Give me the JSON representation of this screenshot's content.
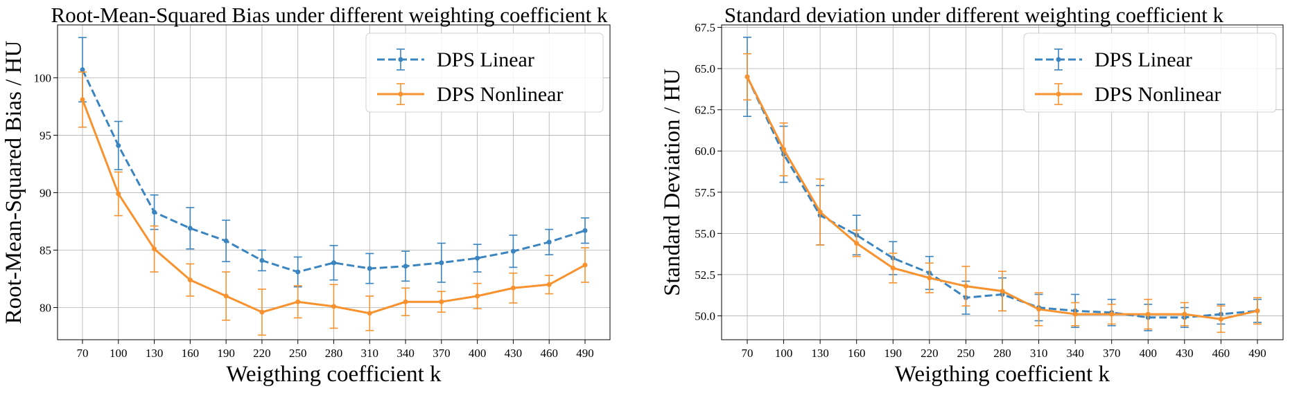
{
  "chart_data": [
    {
      "type": "line",
      "title": "Root-Mean-Squared Bias under different weighting coefficient k",
      "xlabel": "Weigthing coefficient k",
      "ylabel": "Root-Mean-Squared Bias / HU",
      "x": [
        70,
        100,
        130,
        160,
        190,
        220,
        250,
        280,
        310,
        340,
        370,
        400,
        430,
        460,
        490
      ],
      "xticks": [
        "70",
        "100",
        "130",
        "160",
        "190",
        "220",
        "250",
        "280",
        "310",
        "340",
        "370",
        "400",
        "430",
        "460",
        "490"
      ],
      "yticks": [
        80,
        85,
        90,
        95,
        100
      ],
      "ytick_labels": [
        "80",
        "85",
        "90",
        "95",
        "100"
      ],
      "ylim": [
        77.2,
        104.6
      ],
      "grid": true,
      "legend": "top-right",
      "series": [
        {
          "name": "DPS Linear",
          "color": "#3a84c0",
          "style": "dashed",
          "values": [
            100.7,
            94.1,
            88.3,
            86.9,
            85.8,
            84.1,
            83.1,
            83.9,
            83.4,
            83.6,
            83.9,
            84.3,
            84.9,
            85.7,
            86.7
          ],
          "errors": [
            2.8,
            2.1,
            1.5,
            1.8,
            1.8,
            0.9,
            1.3,
            1.5,
            1.3,
            1.3,
            1.7,
            1.2,
            1.4,
            1.1,
            1.1
          ]
        },
        {
          "name": "DPS Nonlinear",
          "color": "#f7922f",
          "style": "solid",
          "values": [
            98.1,
            89.9,
            85.1,
            82.4,
            81.0,
            79.6,
            80.5,
            80.1,
            79.5,
            80.5,
            80.5,
            81.0,
            81.7,
            82.0,
            83.7
          ],
          "errors": [
            2.4,
            1.9,
            2.0,
            1.4,
            2.1,
            2.0,
            1.4,
            1.9,
            1.5,
            1.2,
            0.9,
            1.1,
            1.3,
            0.8,
            1.5
          ]
        }
      ]
    },
    {
      "type": "line",
      "title": "Standard deviation under different weighting coefficient k",
      "xlabel": "Weigthing coefficient k",
      "ylabel": "Standard Deviation / HU",
      "x": [
        70,
        100,
        130,
        160,
        190,
        220,
        250,
        280,
        310,
        340,
        370,
        400,
        430,
        460,
        490
      ],
      "xticks": [
        "70",
        "100",
        "130",
        "160",
        "190",
        "220",
        "250",
        "280",
        "310",
        "340",
        "370",
        "400",
        "430",
        "460",
        "490"
      ],
      "yticks": [
        50.0,
        52.5,
        55.0,
        57.5,
        60.0,
        62.5,
        65.0,
        67.5
      ],
      "ytick_labels": [
        "50.0",
        "52.5",
        "55.0",
        "57.5",
        "60.0",
        "62.5",
        "65.0",
        "67.5"
      ],
      "ylim": [
        48.55,
        67.65
      ],
      "grid": true,
      "legend": "top-right",
      "series": [
        {
          "name": "DPS Linear",
          "color": "#3a84c0",
          "style": "dashed",
          "values": [
            64.5,
            59.8,
            56.1,
            54.9,
            53.5,
            52.6,
            51.1,
            51.3,
            50.5,
            50.3,
            50.2,
            49.9,
            49.9,
            50.1,
            50.3
          ],
          "errors": [
            2.4,
            1.7,
            1.8,
            1.2,
            1.0,
            1.0,
            1.0,
            1.0,
            0.8,
            1.0,
            0.8,
            0.8,
            0.6,
            0.6,
            0.7
          ]
        },
        {
          "name": "DPS Nonlinear",
          "color": "#f7922f",
          "style": "solid",
          "values": [
            64.5,
            60.1,
            56.3,
            54.4,
            52.9,
            52.3,
            51.8,
            51.5,
            50.4,
            50.1,
            50.1,
            50.1,
            50.1,
            49.8,
            50.3
          ],
          "errors": [
            1.4,
            1.6,
            2.0,
            0.8,
            0.9,
            0.9,
            1.2,
            1.2,
            1.0,
            0.7,
            0.6,
            0.9,
            0.7,
            0.8,
            0.8
          ]
        }
      ]
    }
  ]
}
